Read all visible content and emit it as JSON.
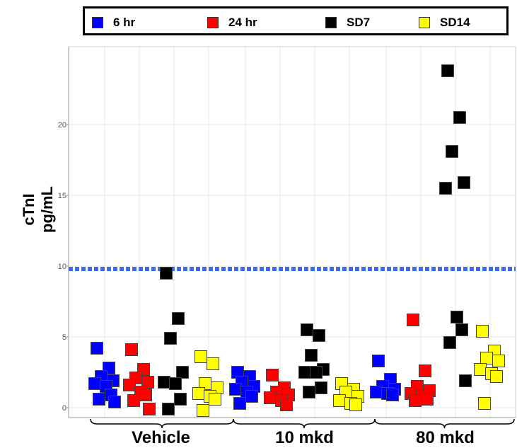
{
  "chart_data": {
    "type": "scatter",
    "title": "",
    "ylabel_lines": [
      "cTnI",
      "pg/mL"
    ],
    "xlabel": "",
    "ylim": [
      -1,
      25
    ],
    "yticks": [
      0,
      5,
      10,
      15,
      20
    ],
    "grid": true,
    "legend_position": "top",
    "reference_line": {
      "y": 9.8,
      "style": "dotted",
      "color": "#3b6cf0"
    },
    "groups": [
      "Vehicle",
      "10 mkd",
      "80 mkd"
    ],
    "series": [
      {
        "name": "6 hr",
        "color": "#0000ff",
        "points": [
          {
            "group": "Vehicle",
            "values": [
              4.2,
              2.8,
              2.2,
              1.9,
              1.7,
              1.5,
              0.9,
              0.6,
              0.4
            ]
          },
          {
            "group": "10 mkd",
            "values": [
              2.5,
              2.2,
              1.8,
              1.5,
              1.3,
              1.1,
              0.8,
              0.3
            ]
          },
          {
            "group": "80 mkd",
            "values": [
              3.3,
              2.0,
              1.5,
              1.3,
              1.1,
              1.0,
              0.9
            ]
          }
        ]
      },
      {
        "name": "24 hr",
        "color": "#ff0000",
        "points": [
          {
            "group": "Vehicle",
            "values": [
              4.1,
              2.7,
              2.1,
              1.8,
              1.6,
              1.1,
              0.9,
              0.5,
              -0.1
            ]
          },
          {
            "group": "10 mkd",
            "values": [
              2.3,
              1.4,
              1.1,
              0.9,
              0.7,
              0.5,
              0.2
            ]
          },
          {
            "group": "80 mkd",
            "values": [
              6.2,
              2.6,
              1.5,
              1.2,
              1.0,
              0.8,
              0.6,
              0.5
            ]
          }
        ]
      },
      {
        "name": "SD7",
        "color": "#000000",
        "points": [
          {
            "group": "Vehicle",
            "values": [
              9.5,
              6.3,
              4.9,
              2.5,
              1.8,
              1.7,
              0.6,
              -0.1
            ]
          },
          {
            "group": "10 mkd",
            "values": [
              5.5,
              5.1,
              3.7,
              2.7,
              2.5,
              2.5,
              1.4,
              1.1
            ]
          },
          {
            "group": "80 mkd",
            "values": [
              23.8,
              20.5,
              18.1,
              15.9,
              15.5,
              6.4,
              5.5,
              4.6,
              1.9
            ]
          }
        ]
      },
      {
        "name": "SD14",
        "color": "#ffff00",
        "points": [
          {
            "group": "Vehicle",
            "values": [
              3.6,
              3.1,
              1.7,
              1.4,
              1.0,
              0.8,
              0.6,
              -0.2
            ]
          },
          {
            "group": "10 mkd",
            "values": [
              1.7,
              1.3,
              1.1,
              0.8,
              0.5,
              0.3,
              0.2
            ]
          },
          {
            "group": "80 mkd",
            "values": [
              5.4,
              4.0,
              3.5,
              3.3,
              2.7,
              2.4,
              2.2,
              0.3
            ]
          }
        ]
      }
    ]
  }
}
